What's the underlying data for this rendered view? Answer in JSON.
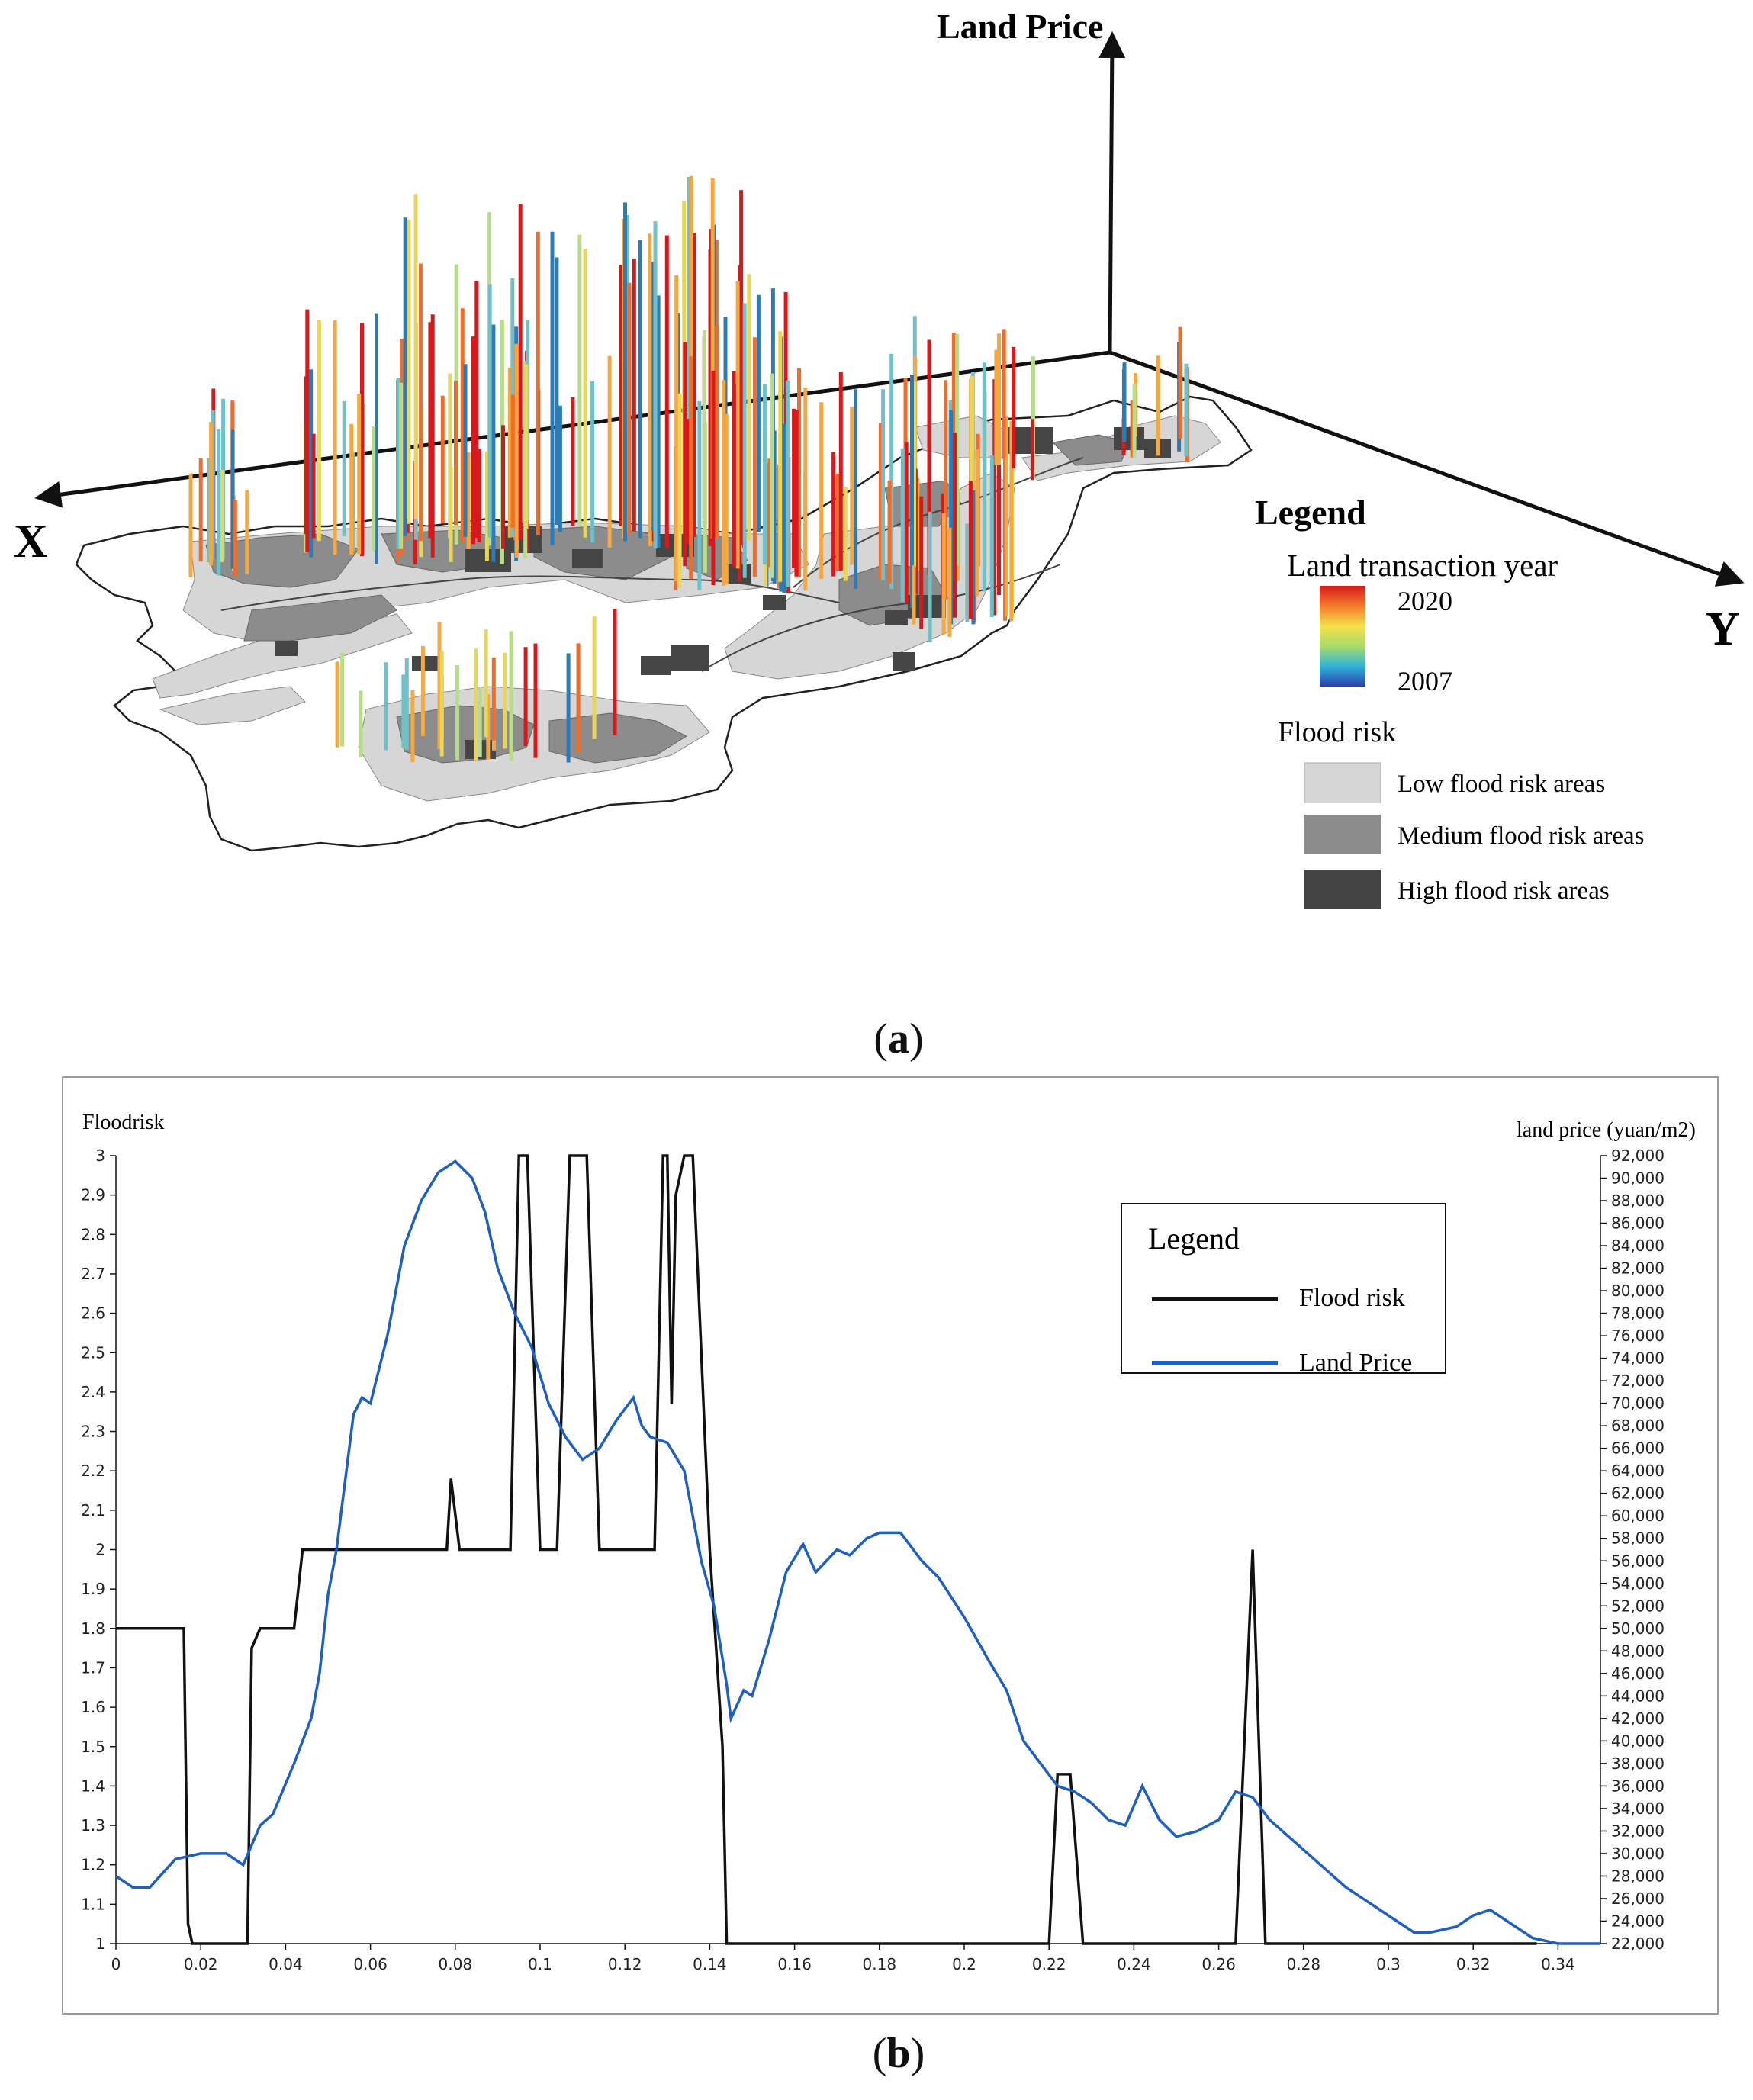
{
  "panel_a": {
    "caption_letter": "a",
    "axis_x_label": "X",
    "axis_y_label": "Y",
    "axis_z_label": "Land Price",
    "legend": {
      "title": "Legend",
      "year_title": "Land transaction year",
      "year_max": "2020",
      "year_min": "2007",
      "flood_title": "Flood risk",
      "items": [
        {
          "label": "Low flood risk areas",
          "color": "#d6d6d6"
        },
        {
          "label": "Medium flood risk areas",
          "color": "#8c8c8c"
        },
        {
          "label": "High flood risk areas",
          "color": "#444444"
        }
      ]
    },
    "colors": {
      "low": "#d6d6d6",
      "medium": "#8c8c8c",
      "high": "#454545",
      "ramp": [
        "#d7191c",
        "#ef6c2b",
        "#f5a742",
        "#e8d55a",
        "#b9dc8a",
        "#6fc0c8",
        "#2c7bb6"
      ]
    }
  },
  "panel_b": {
    "caption_letter": "b",
    "left_axis_title": "Floodrisk",
    "right_axis_title": "land price (yuan/m2)",
    "legend": {
      "title": "Legend",
      "items": [
        {
          "label": "Flood risk",
          "color": "#111111"
        },
        {
          "label": "Land Price",
          "color": "#1f5fbf"
        }
      ]
    }
  },
  "chart_data": {
    "type": "line",
    "xlim": [
      0,
      0.35
    ],
    "x_ticks": [
      "0",
      "0.02",
      "0.04",
      "0.06",
      "0.08",
      "0.1",
      "0.12",
      "0.14",
      "0.16",
      "0.18",
      "0.2",
      "0.22",
      "0.24",
      "0.26",
      "0.28",
      "0.3",
      "0.32",
      "0.34"
    ],
    "left_ylim": [
      1,
      3
    ],
    "left_ticks": [
      "1",
      "1.1",
      "1.2",
      "1.3",
      "1.4",
      "1.5",
      "1.6",
      "1.7",
      "1.8",
      "1.9",
      "2",
      "2.1",
      "2.2",
      "2.3",
      "2.4",
      "2.5",
      "2.6",
      "2.7",
      "2.8",
      "2.9",
      "3"
    ],
    "right_ylim": [
      22000,
      92000
    ],
    "right_ticks": [
      "22,000",
      "24,000",
      "26,000",
      "28,000",
      "30,000",
      "32,000",
      "34,000",
      "36,000",
      "38,000",
      "40,000",
      "42,000",
      "44,000",
      "46,000",
      "48,000",
      "50,000",
      "52,000",
      "54,000",
      "56,000",
      "58,000",
      "60,000",
      "62,000",
      "64,000",
      "66,000",
      "68,000",
      "70,000",
      "72,000",
      "74,000",
      "76,000",
      "78,000",
      "80,000",
      "82,000",
      "84,000",
      "86,000",
      "88,000",
      "90,000",
      "92,000"
    ],
    "series": [
      {
        "name": "Flood risk",
        "axis": "left",
        "color": "#111111",
        "points": [
          [
            0,
            1.8
          ],
          [
            0.016,
            1.8
          ],
          [
            0.017,
            1.05
          ],
          [
            0.018,
            1
          ],
          [
            0.031,
            1
          ],
          [
            0.032,
            1.75
          ],
          [
            0.034,
            1.8
          ],
          [
            0.042,
            1.8
          ],
          [
            0.044,
            2
          ],
          [
            0.078,
            2
          ],
          [
            0.079,
            2.18
          ],
          [
            0.081,
            2
          ],
          [
            0.093,
            2
          ],
          [
            0.095,
            3
          ],
          [
            0.097,
            3
          ],
          [
            0.1,
            2
          ],
          [
            0.104,
            2
          ],
          [
            0.107,
            3
          ],
          [
            0.111,
            3
          ],
          [
            0.114,
            2
          ],
          [
            0.127,
            2
          ],
          [
            0.129,
            3
          ],
          [
            0.13,
            3
          ],
          [
            0.131,
            2.37
          ],
          [
            0.132,
            2.9
          ],
          [
            0.134,
            3
          ],
          [
            0.136,
            3
          ],
          [
            0.138,
            2.5
          ],
          [
            0.14,
            2
          ],
          [
            0.143,
            1.5
          ],
          [
            0.144,
            1
          ],
          [
            0.22,
            1
          ],
          [
            0.222,
            1.43
          ],
          [
            0.225,
            1.43
          ],
          [
            0.228,
            1
          ],
          [
            0.264,
            1
          ],
          [
            0.268,
            2
          ],
          [
            0.271,
            1
          ],
          [
            0.335,
            1
          ]
        ]
      },
      {
        "name": "Land Price",
        "axis": "right",
        "color": "#1f5fbf",
        "points": [
          [
            0,
            28000
          ],
          [
            0.004,
            27000
          ],
          [
            0.008,
            27000
          ],
          [
            0.014,
            29500
          ],
          [
            0.02,
            30000
          ],
          [
            0.026,
            30000
          ],
          [
            0.03,
            29000
          ],
          [
            0.034,
            32500
          ],
          [
            0.037,
            33500
          ],
          [
            0.042,
            38000
          ],
          [
            0.046,
            42000
          ],
          [
            0.048,
            46000
          ],
          [
            0.05,
            53000
          ],
          [
            0.052,
            57000
          ],
          [
            0.056,
            69000
          ],
          [
            0.058,
            70500
          ],
          [
            0.06,
            70000
          ],
          [
            0.064,
            76000
          ],
          [
            0.068,
            84000
          ],
          [
            0.072,
            88000
          ],
          [
            0.076,
            90500
          ],
          [
            0.08,
            91500
          ],
          [
            0.084,
            90000
          ],
          [
            0.087,
            87000
          ],
          [
            0.09,
            82000
          ],
          [
            0.094,
            78000
          ],
          [
            0.098,
            75000
          ],
          [
            0.102,
            70000
          ],
          [
            0.106,
            67000
          ],
          [
            0.11,
            65000
          ],
          [
            0.114,
            66000
          ],
          [
            0.118,
            68500
          ],
          [
            0.122,
            70500
          ],
          [
            0.124,
            68000
          ],
          [
            0.126,
            67000
          ],
          [
            0.13,
            66500
          ],
          [
            0.134,
            64000
          ],
          [
            0.138,
            56000
          ],
          [
            0.141,
            52000
          ],
          [
            0.144,
            45000
          ],
          [
            0.145,
            42000
          ],
          [
            0.148,
            44500
          ],
          [
            0.15,
            44000
          ],
          [
            0.154,
            49000
          ],
          [
            0.158,
            55000
          ],
          [
            0.162,
            57500
          ],
          [
            0.165,
            55000
          ],
          [
            0.17,
            57000
          ],
          [
            0.173,
            56500
          ],
          [
            0.177,
            58000
          ],
          [
            0.18,
            58500
          ],
          [
            0.185,
            58500
          ],
          [
            0.19,
            56000
          ],
          [
            0.194,
            54500
          ],
          [
            0.2,
            51000
          ],
          [
            0.206,
            47000
          ],
          [
            0.21,
            44500
          ],
          [
            0.214,
            40000
          ],
          [
            0.218,
            38000
          ],
          [
            0.222,
            36000
          ],
          [
            0.226,
            35500
          ],
          [
            0.23,
            34500
          ],
          [
            0.234,
            33000
          ],
          [
            0.238,
            32500
          ],
          [
            0.242,
            36000
          ],
          [
            0.246,
            33000
          ],
          [
            0.25,
            31500
          ],
          [
            0.255,
            32000
          ],
          [
            0.26,
            33000
          ],
          [
            0.264,
            35500
          ],
          [
            0.268,
            35000
          ],
          [
            0.272,
            33000
          ],
          [
            0.278,
            31000
          ],
          [
            0.284,
            29000
          ],
          [
            0.29,
            27000
          ],
          [
            0.296,
            25500
          ],
          [
            0.302,
            24000
          ],
          [
            0.306,
            23000
          ],
          [
            0.31,
            23000
          ],
          [
            0.316,
            23500
          ],
          [
            0.32,
            24500
          ],
          [
            0.324,
            25000
          ],
          [
            0.328,
            24000
          ],
          [
            0.334,
            22500
          ],
          [
            0.34,
            22000
          ],
          [
            0.35,
            22000
          ]
        ]
      }
    ]
  }
}
